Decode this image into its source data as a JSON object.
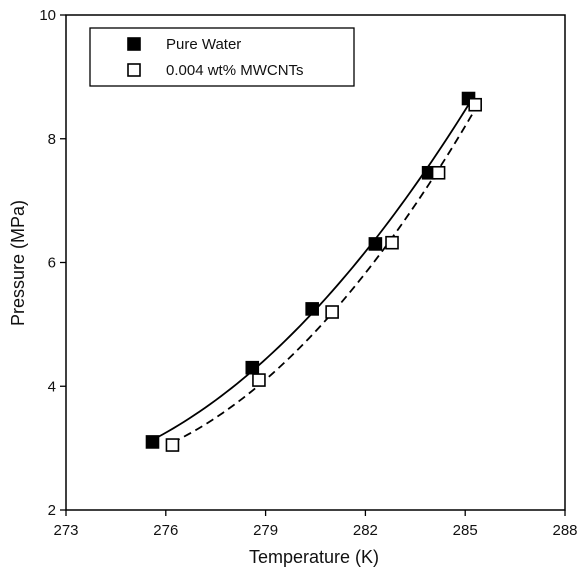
{
  "chart_data": {
    "type": "scatter",
    "xlabel": "Temperature (K)",
    "ylabel": "Pressure (MPa)",
    "xlim": [
      273,
      288
    ],
    "ylim": [
      2,
      10
    ],
    "xticks": [
      273,
      276,
      279,
      282,
      285,
      288
    ],
    "yticks": [
      2,
      4,
      6,
      8,
      10
    ],
    "grid": false,
    "legend_position": "top-left",
    "series": [
      {
        "name": "Pure Water",
        "marker": "filled-square",
        "line_style": "solid",
        "color": "#000000",
        "x": [
          275.6,
          278.6,
          280.4,
          282.3,
          283.9,
          285.1
        ],
        "y": [
          3.1,
          4.3,
          5.25,
          6.3,
          7.45,
          8.65
        ]
      },
      {
        "name": "0.004 wt% MWCNTs",
        "marker": "open-square",
        "line_style": "dashed",
        "color": "#000000",
        "x": [
          276.2,
          278.8,
          281.0,
          282.8,
          284.2,
          285.3
        ],
        "y": [
          3.05,
          4.1,
          5.2,
          6.32,
          7.45,
          8.55
        ]
      }
    ]
  }
}
